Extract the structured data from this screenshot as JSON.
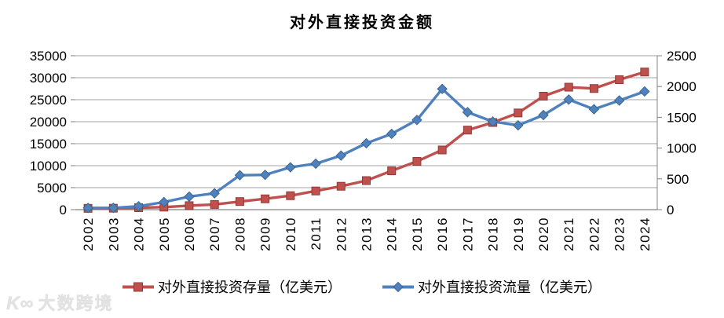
{
  "title": "对外直接投资金额",
  "watermark": {
    "logo": "K∞",
    "text": "大数跨境"
  },
  "chart_data": {
    "type": "line",
    "title": "对外直接投资金额",
    "categories": [
      "2002",
      "2003",
      "2004",
      "2005",
      "2006",
      "2007",
      "2008",
      "2009",
      "2010",
      "2011",
      "2012",
      "2013",
      "2014",
      "2015",
      "2016",
      "2017",
      "2018",
      "2019",
      "2020",
      "2021",
      "2022",
      "2023",
      "2024"
    ],
    "series": [
      {
        "name": "对外直接投资存量（亿美元）",
        "axis": "left",
        "marker": "square",
        "color": "#C0504D",
        "marker_border": "#8E3B38",
        "values": [
          299,
          332,
          448,
          572,
          906,
          1179,
          1839,
          2458,
          3172,
          4248,
          5319,
          6605,
          8826,
          10979,
          13574,
          18090,
          19823,
          21989,
          25807,
          27852,
          27549,
          29554,
          31300
        ]
      },
      {
        "name": "对外直接投资流量（亿美元）",
        "axis": "right",
        "marker": "diamond",
        "color": "#4F81BD",
        "marker_border": "#3A6693",
        "values": [
          27,
          28.5,
          55,
          122.7,
          211.6,
          265.1,
          559.1,
          565.3,
          688.1,
          746.5,
          878,
          1078.4,
          1231.2,
          1456.7,
          1961.5,
          1582.9,
          1430.4,
          1369.1,
          1537.1,
          1788.2,
          1631.2,
          1772.9,
          1920
        ]
      }
    ],
    "left_axis": {
      "min": 0,
      "max": 35000,
      "step": 5000,
      "labels": [
        "0",
        "5000",
        "10000",
        "15000",
        "20000",
        "25000",
        "30000",
        "35000"
      ]
    },
    "right_axis": {
      "min": 0,
      "max": 2500,
      "step": 500,
      "labels": [
        "0",
        "500",
        "1000",
        "1500",
        "2000",
        "2500"
      ]
    },
    "grid": true,
    "legend_position": "bottom",
    "colors": {
      "grid": "#A6A6A6",
      "axis": "#808080",
      "label": "#000000"
    }
  }
}
